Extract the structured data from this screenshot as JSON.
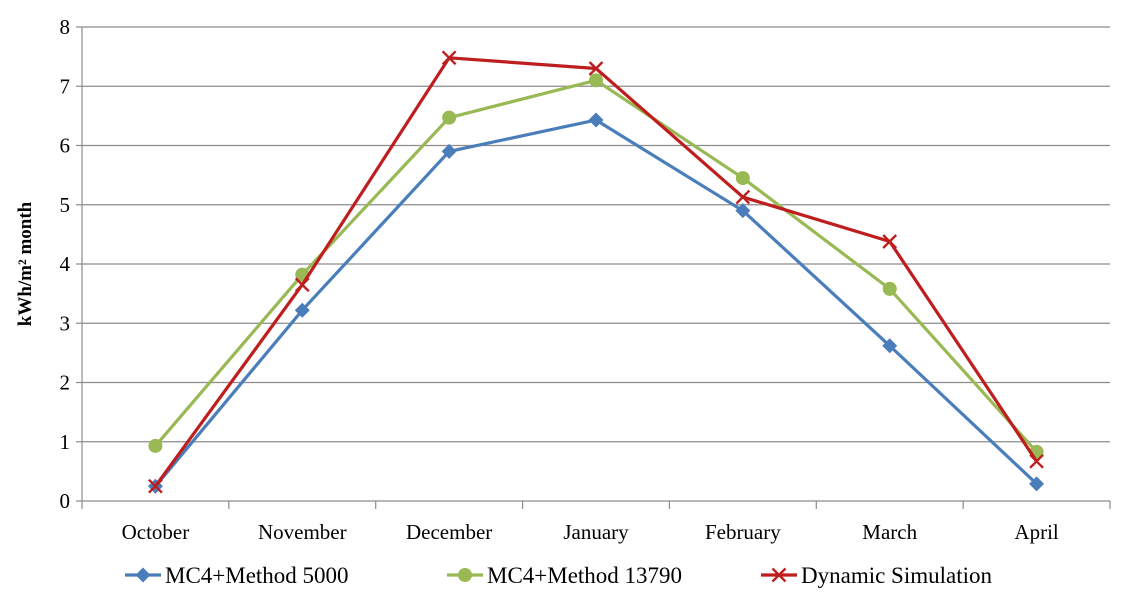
{
  "chart_data": {
    "type": "line",
    "title": "",
    "xlabel": "",
    "ylabel": "kWh/m² month",
    "categories": [
      "October",
      "November",
      "December",
      "January",
      "February",
      "March",
      "April"
    ],
    "ylim": [
      0,
      8
    ],
    "yticks": [
      0,
      1,
      2,
      3,
      4,
      5,
      6,
      7,
      8
    ],
    "grid": "horizontal",
    "legend_position": "bottom",
    "series": [
      {
        "name": "MC4+Method 5000",
        "color": "#4a7ebb",
        "marker": "diamond",
        "values": [
          0.25,
          3.22,
          5.9,
          6.43,
          4.9,
          2.62,
          0.29
        ]
      },
      {
        "name": "MC4+Method 13790",
        "color": "#98b954",
        "marker": "circle",
        "values": [
          0.93,
          3.82,
          6.47,
          7.1,
          5.45,
          3.58,
          0.83
        ]
      },
      {
        "name": "Dynamic Simulation",
        "color": "#be1e1e",
        "marker": "x",
        "values": [
          0.25,
          3.65,
          7.48,
          7.3,
          5.13,
          4.38,
          0.67
        ]
      }
    ]
  }
}
